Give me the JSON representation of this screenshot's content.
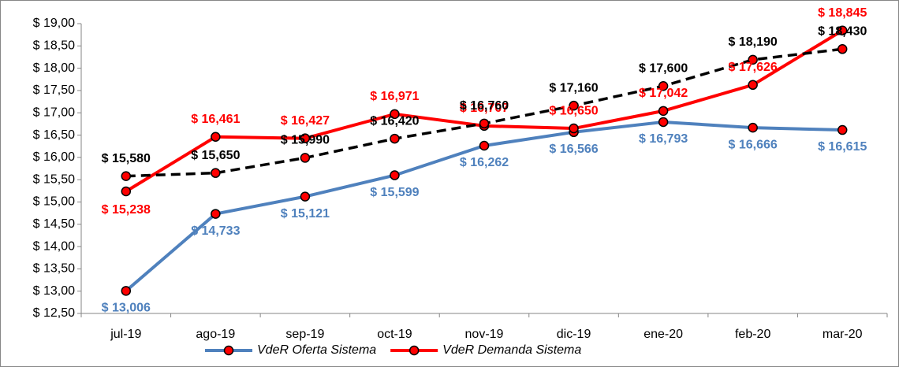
{
  "chart_data": {
    "type": "line",
    "categories": [
      "jul-19",
      "ago-19",
      "sep-19",
      "oct-19",
      "nov-19",
      "dic-19",
      "ene-20",
      "feb-20",
      "mar-20"
    ],
    "series": [
      {
        "name": "VdeR Oferta Sistema",
        "color": "#4f81bd",
        "dashed": false,
        "values": [
          13.006,
          14.733,
          15.121,
          15.599,
          16.262,
          16.566,
          16.793,
          16.666,
          16.615
        ],
        "value_labels": [
          "$ 13,006",
          "$ 14,733",
          "$ 15,121",
          "$ 15,599",
          "$ 16,262",
          "$ 16,566",
          "$ 16,793",
          "$ 16,666",
          "$ 16,615"
        ]
      },
      {
        "name": "VdeR Demanda Sistema",
        "color": "#ff0000",
        "dashed": false,
        "values": [
          15.238,
          16.461,
          16.427,
          16.971,
          16.707,
          16.65,
          17.042,
          17.626,
          18.845
        ],
        "value_labels": [
          "$ 15,238",
          "$ 16,461",
          "$ 16,427",
          "$ 16,971",
          "$ 16,707",
          "$ 16,650",
          "$ 17,042",
          "$ 17,626",
          "$ 18,845"
        ]
      },
      {
        "color": "#000000",
        "dashed": true,
        "values": [
          15.58,
          15.65,
          15.99,
          16.42,
          16.76,
          17.16,
          17.6,
          18.19,
          18.43
        ],
        "value_labels": [
          "$ 15,580",
          "$ 15,650",
          "$ 15,990",
          "$ 16,420",
          "$ 16,760",
          "$ 17,160",
          "$ 17,600",
          "$ 18,190",
          "$ 18,430"
        ]
      }
    ],
    "ylim": [
      12.5,
      19
    ],
    "yticks": [
      {
        "value": 12.5,
        "label": "$ 12,50"
      },
      {
        "value": 13,
        "label": "$ 13,00"
      },
      {
        "value": 13.5,
        "label": "$ 13,50"
      },
      {
        "value": 14,
        "label": "$ 14,00"
      },
      {
        "value": 14.5,
        "label": "$ 14,50"
      },
      {
        "value": 15,
        "label": "$ 15,00"
      },
      {
        "value": 15.5,
        "label": "$ 15,50"
      },
      {
        "value": 16,
        "label": "$ 16,00"
      },
      {
        "value": 16.5,
        "label": "$ 16,50"
      },
      {
        "value": 17,
        "label": "$ 17,00"
      },
      {
        "value": 17.5,
        "label": "$ 17,50"
      },
      {
        "value": 18,
        "label": "$ 18,00"
      },
      {
        "value": 18.5,
        "label": "$ 18,50"
      },
      {
        "value": 19,
        "label": "$ 19,00"
      }
    ],
    "grid": false,
    "legend": "bottom",
    "marker_color": "#ff0000"
  }
}
